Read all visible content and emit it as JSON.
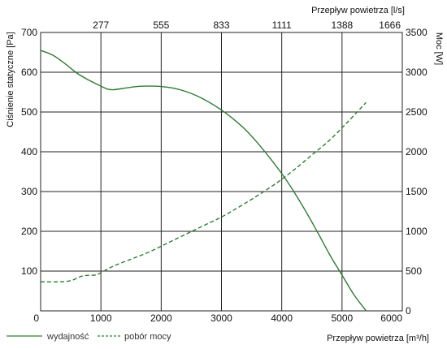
{
  "chart_data": {
    "type": "line",
    "axes": {
      "x_bottom": {
        "label": "Przepływ powietrza [m³/h]",
        "min": 0,
        "max": 6000,
        "ticks": [
          0,
          1000,
          2000,
          3000,
          4000,
          5000,
          6000
        ]
      },
      "x_top": {
        "label": "Przepływ powietrza [l/s]",
        "tick_labels": [
          "277",
          "555",
          "833",
          "1111",
          "1388",
          "1666"
        ]
      },
      "y_left": {
        "label": "Ciśnienie statyczne [Pa]",
        "min": 0,
        "max": 700,
        "ticks": [
          100,
          200,
          300,
          400,
          500,
          600,
          700
        ]
      },
      "y_right": {
        "label": "Moc [W]",
        "min": 0,
        "max": 3500,
        "ticks": [
          0,
          500,
          1000,
          1500,
          2000,
          2500,
          3000,
          3500
        ]
      }
    },
    "grid": true,
    "legend_position": "bottom-left",
    "line_color": "#2e7d32",
    "series": [
      {
        "name": "wydajność",
        "axis": "left",
        "style": "solid",
        "points": [
          [
            0,
            655
          ],
          [
            200,
            643
          ],
          [
            400,
            622
          ],
          [
            600,
            598
          ],
          [
            800,
            580
          ],
          [
            1000,
            565
          ],
          [
            1100,
            558
          ],
          [
            1200,
            556
          ],
          [
            1400,
            560
          ],
          [
            1600,
            564
          ],
          [
            1800,
            565
          ],
          [
            2000,
            564
          ],
          [
            2200,
            560
          ],
          [
            2400,
            552
          ],
          [
            2600,
            540
          ],
          [
            2800,
            524
          ],
          [
            3000,
            505
          ],
          [
            3200,
            482
          ],
          [
            3400,
            455
          ],
          [
            3600,
            422
          ],
          [
            3800,
            385
          ],
          [
            4000,
            345
          ],
          [
            4200,
            300
          ],
          [
            4400,
            250
          ],
          [
            4600,
            196
          ],
          [
            4800,
            140
          ],
          [
            5000,
            90
          ],
          [
            5200,
            40
          ],
          [
            5400,
            0
          ]
        ]
      },
      {
        "name": "pobór mocy",
        "axis": "right",
        "style": "dashed",
        "points": [
          [
            0,
            365
          ],
          [
            300,
            365
          ],
          [
            500,
            380
          ],
          [
            700,
            440
          ],
          [
            900,
            450
          ],
          [
            1000,
            480
          ],
          [
            1200,
            560
          ],
          [
            1500,
            650
          ],
          [
            1800,
            740
          ],
          [
            2100,
            850
          ],
          [
            2400,
            960
          ],
          [
            2700,
            1070
          ],
          [
            3000,
            1180
          ],
          [
            3300,
            1310
          ],
          [
            3600,
            1450
          ],
          [
            3900,
            1600
          ],
          [
            4200,
            1770
          ],
          [
            4500,
            1960
          ],
          [
            4800,
            2150
          ],
          [
            5100,
            2380
          ],
          [
            5400,
            2620
          ]
        ]
      }
    ]
  }
}
